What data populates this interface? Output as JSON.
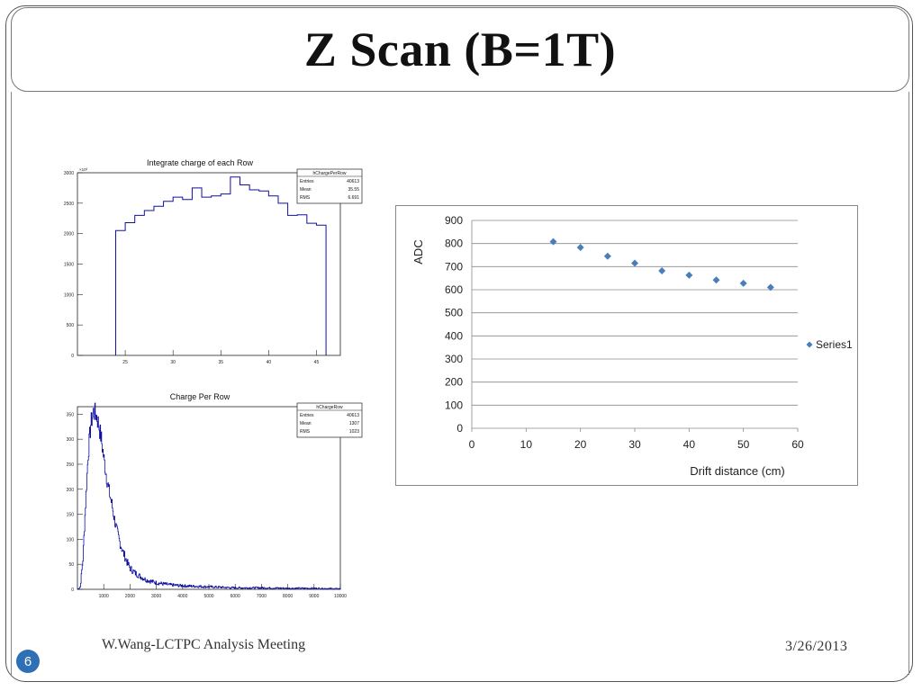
{
  "slide": {
    "title": "Z Scan (B=1T)",
    "footer_left": "W.Wang-LCTPC Analysis Meeting",
    "footer_right": "3/26/2013",
    "page_number": "6",
    "accent": "#2f6fb6"
  },
  "chart_data": [
    {
      "type": "bar",
      "title": "Integrate charge of each Row",
      "exponent_label": "×10³",
      "stats": {
        "name": "hChargePerRow",
        "rows": [
          [
            "Entries",
            "40613"
          ],
          [
            "Mean",
            "35.55"
          ],
          [
            "RMS",
            "6.691"
          ]
        ]
      },
      "xlim": [
        20,
        47.5
      ],
      "ylim": [
        0,
        3000
      ],
      "xticks": [
        25,
        30,
        35,
        40,
        45
      ],
      "yticks": [
        0,
        500,
        1000,
        1500,
        2000,
        2500,
        3000
      ],
      "bins": {
        "start": 24,
        "width": 1,
        "values": [
          2050,
          2180,
          2300,
          2380,
          2450,
          2530,
          2600,
          2560,
          2750,
          2600,
          2620,
          2650,
          2930,
          2800,
          2720,
          2700,
          2620,
          2500,
          2300,
          2310,
          2170,
          2140
        ]
      },
      "color": "#1010a0"
    },
    {
      "type": "line",
      "title": "Charge Per Row",
      "stats": {
        "name": "hChargeRow",
        "rows": [
          [
            "Entries",
            "40613"
          ],
          [
            "Mean",
            "1307"
          ],
          [
            "RMS",
            "1023"
          ]
        ]
      },
      "xlim": [
        0,
        10000
      ],
      "ylim": [
        0,
        365
      ],
      "xticks": [
        1000,
        2000,
        3000,
        4000,
        5000,
        6000,
        7000,
        8000,
        9000,
        10000
      ],
      "yticks": [
        0,
        50,
        100,
        150,
        200,
        250,
        300,
        350
      ],
      "x": [
        0,
        100,
        200,
        300,
        400,
        500,
        600,
        700,
        800,
        900,
        1000,
        1100,
        1200,
        1300,
        1400,
        1500,
        1600,
        1700,
        1800,
        1900,
        2000,
        2200,
        2400,
        2600,
        2800,
        3000,
        3500,
        4000,
        4500,
        5000,
        6000,
        7000,
        8000,
        9000,
        10000
      ],
      "y": [
        0,
        5,
        60,
        170,
        270,
        330,
        355,
        350,
        330,
        300,
        260,
        225,
        195,
        170,
        140,
        115,
        95,
        78,
        65,
        52,
        42,
        32,
        25,
        19,
        16,
        13,
        9,
        7,
        6,
        5,
        3,
        3,
        2,
        2,
        1
      ],
      "color": "#1010a0"
    },
    {
      "type": "scatter",
      "xlabel": "Drift distance (cm)",
      "ylabel": "ADC",
      "xlim": [
        0,
        60
      ],
      "ylim": [
        0,
        900
      ],
      "xticks": [
        0,
        10,
        20,
        30,
        40,
        50,
        60
      ],
      "yticks": [
        0,
        100,
        200,
        300,
        400,
        500,
        600,
        700,
        800,
        900
      ],
      "grid": "horizontal",
      "legend_position": "right",
      "series": [
        {
          "name": "Series1",
          "color": "#4a7ebb",
          "x": [
            15,
            20,
            25,
            30,
            35,
            40,
            45,
            50,
            55
          ],
          "y": [
            808,
            783,
            745,
            715,
            682,
            663,
            642,
            628,
            610
          ]
        }
      ]
    }
  ]
}
